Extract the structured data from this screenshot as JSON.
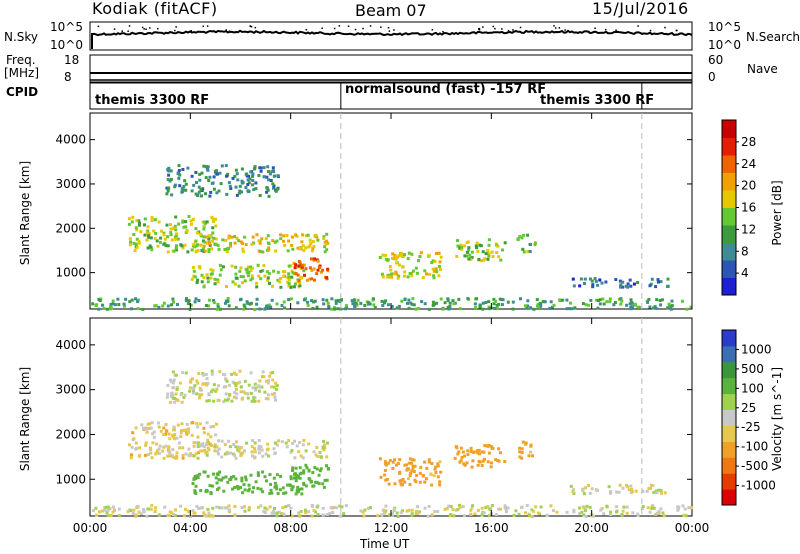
{
  "header": {
    "station": "Kodiak (fitACF)",
    "beam": "Beam 07",
    "date": "15/Jul/2016"
  },
  "nsky": {
    "label": "N.Sky",
    "ticks": [
      "10^5",
      "10^0"
    ],
    "right_label": "N.Search",
    "right_ticks": [
      "10^5",
      "10^0"
    ]
  },
  "freq": {
    "label_line1": "Freq.",
    "label_line2": "[MHz]",
    "ticks": [
      "18",
      "8"
    ],
    "right_label": "Nave",
    "right_ticks": [
      "60",
      "0"
    ]
  },
  "cpid": {
    "label": "CPID",
    "segments": [
      {
        "text": "themis 3300 RF",
        "start_hour": 0
      },
      {
        "text": "normalsound (fast) -157 RF",
        "start_hour": 10
      },
      {
        "text": "themis 3300 RF",
        "start_hour": 22
      }
    ]
  },
  "colors": {
    "power": [
      "#1e1ed2",
      "#2d55b4",
      "#3c8c96",
      "#3c9b3c",
      "#64c832",
      "#e6c800",
      "#f0a000",
      "#f06400",
      "#e61e00",
      "#c80000"
    ],
    "velocity": [
      "#2a3cc8",
      "#3c6eb4",
      "#3c963c",
      "#5ab43c",
      "#a0d250",
      "#c8c8c8",
      "#e6c850",
      "#f0a028",
      "#f07814",
      "#e63c00",
      "#dc0000"
    ]
  },
  "chart_data": [
    {
      "type": "heatmap",
      "parameter": "Power",
      "ylabel": "Slant Range [km]",
      "xlabel": "Time UT",
      "x_ticks": [
        "00:00",
        "04:00",
        "08:00",
        "12:00",
        "16:00",
        "20:00",
        "00:00"
      ],
      "y_ticks": [
        "1000",
        "2000",
        "3000",
        "4000"
      ],
      "xlim_hours": [
        0,
        24
      ],
      "ylim_km": [
        180,
        4600
      ],
      "colorbar": {
        "label": "Power [dB]",
        "ticks": [
          "4",
          "8",
          "12",
          "16",
          "20",
          "24",
          "28"
        ],
        "range": [
          0,
          30
        ]
      },
      "echo_regions": [
        {
          "t0": 0.0,
          "t1": 24.0,
          "r0": 200,
          "r1": 450,
          "value": 10
        },
        {
          "t0": 3.0,
          "t1": 7.5,
          "r0": 2750,
          "r1": 3450,
          "value": 8
        },
        {
          "t0": 1.5,
          "t1": 5.0,
          "r0": 1500,
          "r1": 2300,
          "value": 14
        },
        {
          "t0": 4.0,
          "t1": 9.5,
          "r0": 1500,
          "r1": 1900,
          "value": 16
        },
        {
          "t0": 4.0,
          "t1": 8.5,
          "r0": 700,
          "r1": 1200,
          "value": 14
        },
        {
          "t0": 8.0,
          "t1": 9.5,
          "r0": 850,
          "r1": 1350,
          "value": 22
        },
        {
          "t0": 11.5,
          "t1": 14.0,
          "r0": 900,
          "r1": 1500,
          "value": 16
        },
        {
          "t0": 14.5,
          "t1": 16.5,
          "r0": 1300,
          "r1": 1800,
          "value": 14
        },
        {
          "t0": 17.0,
          "t1": 17.7,
          "r0": 1500,
          "r1": 1900,
          "value": 12
        },
        {
          "t0": 19.0,
          "t1": 23.0,
          "r0": 700,
          "r1": 900,
          "value": 6
        }
      ]
    },
    {
      "type": "heatmap",
      "parameter": "Velocity",
      "ylabel": "Slant Range [km]",
      "xlabel": "Time UT",
      "x_ticks": [
        "00:00",
        "04:00",
        "08:00",
        "12:00",
        "16:00",
        "20:00",
        "00:00"
      ],
      "y_ticks": [
        "1000",
        "2000",
        "3000",
        "4000"
      ],
      "xlim_hours": [
        0,
        24
      ],
      "ylim_km": [
        180,
        4600
      ],
      "colorbar": {
        "label": "Velocity [m s^-1]",
        "ticks": [
          "1000",
          "500",
          "100",
          "25",
          "-25",
          "-100",
          "-500",
          "-1000"
        ]
      },
      "echo_regions": [
        {
          "t0": 0.0,
          "t1": 24.0,
          "r0": 200,
          "r1": 450,
          "value": 0
        },
        {
          "t0": 3.0,
          "t1": 7.5,
          "r0": 2750,
          "r1": 3450,
          "value": 0
        },
        {
          "t0": 1.5,
          "t1": 5.0,
          "r0": 1500,
          "r1": 2300,
          "value": -50
        },
        {
          "t0": 4.0,
          "t1": 9.5,
          "r0": 1500,
          "r1": 1900,
          "value": 0
        },
        {
          "t0": 4.0,
          "t1": 8.5,
          "r0": 700,
          "r1": 1200,
          "value": 200
        },
        {
          "t0": 8.0,
          "t1": 9.5,
          "r0": 850,
          "r1": 1350,
          "value": 300
        },
        {
          "t0": 11.5,
          "t1": 14.0,
          "r0": 900,
          "r1": 1500,
          "value": -150
        },
        {
          "t0": 14.5,
          "t1": 16.5,
          "r0": 1300,
          "r1": 1800,
          "value": -200
        },
        {
          "t0": 17.0,
          "t1": 17.7,
          "r0": 1500,
          "r1": 1900,
          "value": -150
        },
        {
          "t0": 19.0,
          "t1": 23.0,
          "r0": 700,
          "r1": 900,
          "value": 0
        }
      ]
    }
  ]
}
